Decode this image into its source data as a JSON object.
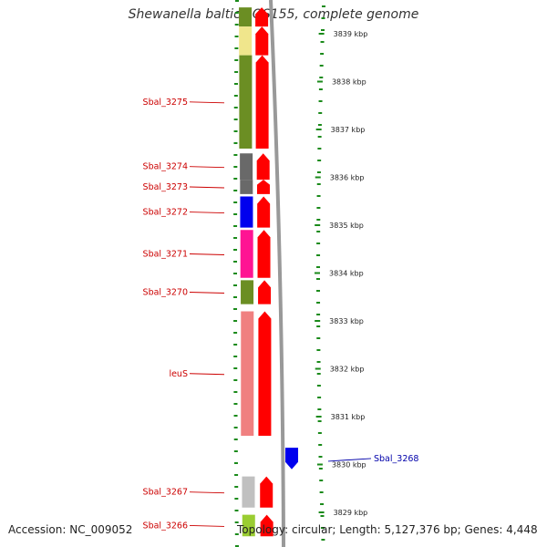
{
  "title": "Shewanella baltica OS155, complete genome",
  "footer": {
    "accession": "Accession: NC_009052",
    "summary": "Topology: circular; Length: 5,127,376 bp; Genes: 4,448"
  },
  "scale": {
    "unit": "kbp",
    "ticks": [
      {
        "kbp": 3839,
        "label": "3839 kbp"
      },
      {
        "kbp": 3838,
        "label": "3838 kbp"
      },
      {
        "kbp": 3837,
        "label": "3837 kbp"
      },
      {
        "kbp": 3836,
        "label": "3836 kbp"
      },
      {
        "kbp": 3835,
        "label": "3835 kbp"
      },
      {
        "kbp": 3834,
        "label": "3834 kbp"
      },
      {
        "kbp": 3833,
        "label": "3833 kbp"
      },
      {
        "kbp": 3832,
        "label": "3832 kbp"
      },
      {
        "kbp": 3831,
        "label": "3831 kbp"
      },
      {
        "kbp": 3830,
        "label": "3830 kbp"
      },
      {
        "kbp": 3829,
        "label": "3829 kbp"
      }
    ]
  },
  "genes": [
    {
      "name": "",
      "start": 3839.55,
      "end": 3839.15,
      "strand": "reverse",
      "category_color": "#6b8e23"
    },
    {
      "name": "",
      "start": 3839.15,
      "end": 3838.55,
      "strand": "reverse",
      "category_color": "#f0e68c"
    },
    {
      "name": "Sbal_3275",
      "start": 3838.55,
      "end": 3836.6,
      "strand": "reverse",
      "category_color": "#6b8e23",
      "label_color": "#cc0000"
    },
    {
      "name": "Sbal_3274",
      "start": 3836.5,
      "end": 3835.95,
      "strand": "reverse",
      "category_color": "#696969",
      "label_color": "#cc0000"
    },
    {
      "name": "Sbal_3273",
      "start": 3835.95,
      "end": 3835.65,
      "strand": "reverse",
      "category_color": "#696969",
      "label_color": "#cc0000"
    },
    {
      "name": "Sbal_3272",
      "start": 3835.6,
      "end": 3834.95,
      "strand": "reverse",
      "category_color": "#0000ee",
      "label_color": "#cc0000"
    },
    {
      "name": "Sbal_3271",
      "start": 3834.9,
      "end": 3833.9,
      "strand": "reverse",
      "category_color": "#ff1493",
      "label_color": "#cc0000"
    },
    {
      "name": "Sbal_3270",
      "start": 3833.85,
      "end": 3833.35,
      "strand": "reverse",
      "category_color": "#6b8e23",
      "label_color": "#cc0000"
    },
    {
      "name": "leuS",
      "start": 3833.2,
      "end": 3830.6,
      "strand": "reverse",
      "category_color": "#f08080",
      "label_color": "#cc0000"
    },
    {
      "name": "Sbal_3268",
      "start": 3830.35,
      "end": 3829.9,
      "strand": "forward",
      "category_color": "#0000ee",
      "label_color": "#0000aa"
    },
    {
      "name": "Sbal_3267",
      "start": 3829.75,
      "end": 3829.1,
      "strand": "reverse",
      "category_color": "#c0c0c0",
      "label_color": "#cc0000"
    },
    {
      "name": "Sbal_3266",
      "start": 3828.95,
      "end": 3828.5,
      "strand": "reverse",
      "category_color": "#9acd32",
      "label_color": "#cc0000"
    }
  ],
  "colors": {
    "reverse_strand": "#ff0000",
    "forward_strand": "#0000ee",
    "backbone": "#999999",
    "tick": "#1a8a1a"
  }
}
